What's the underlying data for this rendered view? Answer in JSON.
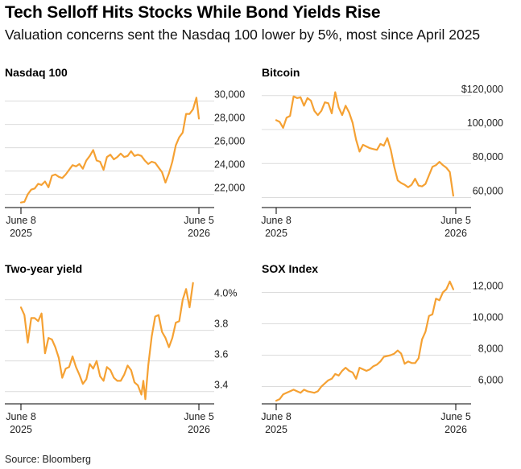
{
  "title": "Tech Selloff Hits Stocks While Bond Yields Rise",
  "subtitle": "Valuation concerns sent the Nasdaq 100 lower by 5%, most since April 2025",
  "source": "Source: Bloomberg",
  "colors": {
    "line": "#f5a133",
    "grid": "#dcdcdc",
    "text": "#000000"
  },
  "chart_data": [
    {
      "type": "line",
      "title": "Nasdaq 100",
      "x_tick_labels": [
        [
          "June 8",
          "2025"
        ],
        [
          "June 5",
          "2026"
        ]
      ],
      "x_range": [
        "2025-06-08",
        "2026-06-05"
      ],
      "y_ticks": [
        22000,
        24000,
        26000,
        28000,
        30000
      ],
      "y_tick_labels": [
        "22,000",
        "24,000",
        "26,000",
        "28,000",
        "30,000"
      ],
      "ylim": [
        21000,
        31500
      ],
      "grid": true,
      "series": [
        {
          "values": [
            [
              "2025-06-08",
              21300
            ],
            [
              "2025-06-15",
              21350
            ],
            [
              "2025-06-22",
              22000
            ],
            [
              "2025-06-29",
              22400
            ],
            [
              "2025-07-06",
              22500
            ],
            [
              "2025-07-13",
              22900
            ],
            [
              "2025-07-20",
              22800
            ],
            [
              "2025-07-27",
              23100
            ],
            [
              "2025-08-03",
              22600
            ],
            [
              "2025-08-10",
              23600
            ],
            [
              "2025-08-17",
              23700
            ],
            [
              "2025-08-24",
              23500
            ],
            [
              "2025-08-31",
              23400
            ],
            [
              "2025-09-07",
              23700
            ],
            [
              "2025-09-14",
              24100
            ],
            [
              "2025-09-21",
              24500
            ],
            [
              "2025-09-28",
              24400
            ],
            [
              "2025-10-05",
              24600
            ],
            [
              "2025-10-12",
              24200
            ],
            [
              "2025-10-19",
              24900
            ],
            [
              "2025-10-26",
              25300
            ],
            [
              "2025-11-02",
              25800
            ],
            [
              "2025-11-09",
              24900
            ],
            [
              "2025-11-16",
              24800
            ],
            [
              "2025-11-23",
              24100
            ],
            [
              "2025-11-30",
              25200
            ],
            [
              "2025-12-07",
              25400
            ],
            [
              "2025-12-14",
              25000
            ],
            [
              "2025-12-21",
              25200
            ],
            [
              "2025-12-28",
              25500
            ],
            [
              "2026-01-04",
              25200
            ],
            [
              "2026-01-11",
              25300
            ],
            [
              "2026-01-18",
              25700
            ],
            [
              "2026-01-25",
              25300
            ],
            [
              "2026-02-01",
              25400
            ],
            [
              "2026-02-08",
              25300
            ],
            [
              "2026-02-15",
              24900
            ],
            [
              "2026-02-22",
              24600
            ],
            [
              "2026-03-01",
              24800
            ],
            [
              "2026-03-08",
              24700
            ],
            [
              "2026-03-15",
              24300
            ],
            [
              "2026-03-22",
              23900
            ],
            [
              "2026-03-29",
              23000
            ],
            [
              "2026-04-05",
              23800
            ],
            [
              "2026-04-12",
              24800
            ],
            [
              "2026-04-19",
              26200
            ],
            [
              "2026-04-26",
              26900
            ],
            [
              "2026-05-03",
              27300
            ],
            [
              "2026-05-10",
              28900
            ],
            [
              "2026-05-17",
              28900
            ],
            [
              "2026-05-24",
              29300
            ],
            [
              "2026-05-31",
              30300
            ],
            [
              "2026-06-05",
              28500
            ]
          ]
        }
      ]
    },
    {
      "type": "line",
      "title": "Bitcoin",
      "x_tick_labels": [
        [
          "June 8",
          "2025"
        ],
        [
          "June 5",
          "2026"
        ]
      ],
      "x_range": [
        "2025-06-08",
        "2026-06-05"
      ],
      "y_ticks": [
        60000,
        80000,
        100000,
        120000
      ],
      "y_tick_labels": [
        "60,000",
        "80,000",
        "100,000",
        "$120,000"
      ],
      "ylim": [
        55000,
        127000
      ],
      "grid": true,
      "series": [
        {
          "values": [
            [
              "2025-06-08",
              105500
            ],
            [
              "2025-06-15",
              104500
            ],
            [
              "2025-06-22",
              101000
            ],
            [
              "2025-06-29",
              107000
            ],
            [
              "2025-07-06",
              108000
            ],
            [
              "2025-07-13",
              119500
            ],
            [
              "2025-07-20",
              118500
            ],
            [
              "2025-07-27",
              119000
            ],
            [
              "2025-08-03",
              114000
            ],
            [
              "2025-08-10",
              118500
            ],
            [
              "2025-08-17",
              117000
            ],
            [
              "2025-08-24",
              111000
            ],
            [
              "2025-08-31",
              108500
            ],
            [
              "2025-09-07",
              111000
            ],
            [
              "2025-09-14",
              116000
            ],
            [
              "2025-09-21",
              115500
            ],
            [
              "2025-09-28",
              109500
            ],
            [
              "2025-10-05",
              122000
            ],
            [
              "2025-10-12",
              113000
            ],
            [
              "2025-10-19",
              108500
            ],
            [
              "2025-10-26",
              114000
            ],
            [
              "2025-11-02",
              110000
            ],
            [
              "2025-11-09",
              104000
            ],
            [
              "2025-11-16",
              94000
            ],
            [
              "2025-11-23",
              87000
            ],
            [
              "2025-11-30",
              91000
            ],
            [
              "2025-12-07",
              90000
            ],
            [
              "2025-12-14",
              89000
            ],
            [
              "2025-12-21",
              88500
            ],
            [
              "2025-12-28",
              88000
            ],
            [
              "2026-01-04",
              91500
            ],
            [
              "2026-01-11",
              90500
            ],
            [
              "2026-01-18",
              95000
            ],
            [
              "2026-01-25",
              88000
            ],
            [
              "2026-02-01",
              78000
            ],
            [
              "2026-02-08",
              70000
            ],
            [
              "2026-02-15",
              68500
            ],
            [
              "2026-02-22",
              67500
            ],
            [
              "2026-03-01",
              66000
            ],
            [
              "2026-03-08",
              67500
            ],
            [
              "2026-03-15",
              71000
            ],
            [
              "2026-03-22",
              67000
            ],
            [
              "2026-03-29",
              66500
            ],
            [
              "2026-04-05",
              68000
            ],
            [
              "2026-04-12",
              73000
            ],
            [
              "2026-04-19",
              78000
            ],
            [
              "2026-04-26",
              79000
            ],
            [
              "2026-05-03",
              81000
            ],
            [
              "2026-05-10",
              79000
            ],
            [
              "2026-05-17",
              77500
            ],
            [
              "2026-05-24",
              75000
            ],
            [
              "2026-05-31",
              61000
            ]
          ]
        }
      ]
    },
    {
      "type": "line",
      "title": "Two-year yield",
      "x_tick_labels": [
        [
          "June 8",
          "2025"
        ],
        [
          "June 5",
          "2026"
        ]
      ],
      "x_range": [
        "2025-06-08",
        "2026-06-05"
      ],
      "y_ticks": [
        3.4,
        3.6,
        3.8,
        4.0
      ],
      "y_tick_labels": [
        "3.4",
        "3.6",
        "3.8",
        "4.0%"
      ],
      "ylim": [
        3.33,
        4.14
      ],
      "grid": true,
      "series": [
        {
          "values": [
            [
              "2025-06-08",
              3.95
            ],
            [
              "2025-06-15",
              3.9
            ],
            [
              "2025-06-22",
              3.72
            ],
            [
              "2025-06-29",
              3.88
            ],
            [
              "2025-07-06",
              3.88
            ],
            [
              "2025-07-13",
              3.86
            ],
            [
              "2025-07-20",
              3.91
            ],
            [
              "2025-07-27",
              3.65
            ],
            [
              "2025-08-03",
              3.75
            ],
            [
              "2025-08-10",
              3.74
            ],
            [
              "2025-08-17",
              3.69
            ],
            [
              "2025-08-24",
              3.62
            ],
            [
              "2025-08-31",
              3.49
            ],
            [
              "2025-09-07",
              3.55
            ],
            [
              "2025-09-14",
              3.56
            ],
            [
              "2025-09-21",
              3.63
            ],
            [
              "2025-09-28",
              3.56
            ],
            [
              "2025-10-05",
              3.51
            ],
            [
              "2025-10-12",
              3.45
            ],
            [
              "2025-10-19",
              3.48
            ],
            [
              "2025-10-26",
              3.58
            ],
            [
              "2025-11-02",
              3.55
            ],
            [
              "2025-11-09",
              3.6
            ],
            [
              "2025-11-16",
              3.5
            ],
            [
              "2025-11-23",
              3.47
            ],
            [
              "2025-11-30",
              3.56
            ],
            [
              "2025-12-07",
              3.54
            ],
            [
              "2025-12-14",
              3.49
            ],
            [
              "2025-12-21",
              3.47
            ],
            [
              "2025-12-28",
              3.47
            ],
            [
              "2026-01-04",
              3.51
            ],
            [
              "2026-01-11",
              3.57
            ],
            [
              "2026-01-18",
              3.54
            ],
            [
              "2026-01-25",
              3.46
            ],
            [
              "2026-02-01",
              3.44
            ],
            [
              "2026-02-08",
              3.38
            ],
            [
              "2026-02-12",
              3.47
            ],
            [
              "2026-02-16",
              3.35
            ],
            [
              "2026-02-22",
              3.57
            ],
            [
              "2026-03-01",
              3.76
            ],
            [
              "2026-03-08",
              3.89
            ],
            [
              "2026-03-15",
              3.9
            ],
            [
              "2026-03-22",
              3.79
            ],
            [
              "2026-03-29",
              3.75
            ],
            [
              "2026-04-05",
              3.69
            ],
            [
              "2026-04-12",
              3.75
            ],
            [
              "2026-04-19",
              3.85
            ],
            [
              "2026-04-26",
              3.86
            ],
            [
              "2026-05-03",
              4.0
            ],
            [
              "2026-05-10",
              4.07
            ],
            [
              "2026-05-17",
              3.95
            ],
            [
              "2026-05-24",
              4.11
            ]
          ]
        }
      ]
    },
    {
      "type": "line",
      "title": "SOX Index",
      "x_tick_labels": [
        [
          "June 8",
          "2025"
        ],
        [
          "June 5",
          "2026"
        ]
      ],
      "x_range": [
        "2025-06-08",
        "2026-06-05"
      ],
      "y_ticks": [
        6000,
        8000,
        10000,
        12000
      ],
      "y_tick_labels": [
        "6,000",
        "8,000",
        "10,000",
        "12,000"
      ],
      "ylim": [
        5000,
        12900
      ],
      "grid": true,
      "series": [
        {
          "values": [
            [
              "2025-06-08",
              5100
            ],
            [
              "2025-06-15",
              5200
            ],
            [
              "2025-06-22",
              5500
            ],
            [
              "2025-06-29",
              5600
            ],
            [
              "2025-07-06",
              5700
            ],
            [
              "2025-07-13",
              5800
            ],
            [
              "2025-07-20",
              5700
            ],
            [
              "2025-07-27",
              5600
            ],
            [
              "2025-08-03",
              5800
            ],
            [
              "2025-08-10",
              5700
            ],
            [
              "2025-08-17",
              5650
            ],
            [
              "2025-08-24",
              5600
            ],
            [
              "2025-08-31",
              5700
            ],
            [
              "2025-09-07",
              6000
            ],
            [
              "2025-09-14",
              6200
            ],
            [
              "2025-09-21",
              6400
            ],
            [
              "2025-09-28",
              6500
            ],
            [
              "2025-10-05",
              6800
            ],
            [
              "2025-10-12",
              6700
            ],
            [
              "2025-10-19",
              7000
            ],
            [
              "2025-10-26",
              7200
            ],
            [
              "2025-11-02",
              7000
            ],
            [
              "2025-11-09",
              6900
            ],
            [
              "2025-11-16",
              6500
            ],
            [
              "2025-11-23",
              7200
            ],
            [
              "2025-12-07",
              7000
            ],
            [
              "2025-12-14",
              7100
            ],
            [
              "2025-12-21",
              7300
            ],
            [
              "2025-12-28",
              7400
            ],
            [
              "2026-01-04",
              7600
            ],
            [
              "2026-01-11",
              7900
            ],
            [
              "2026-01-18",
              7950
            ],
            [
              "2026-01-25",
              8000
            ],
            [
              "2026-02-01",
              8100
            ],
            [
              "2026-02-08",
              8300
            ],
            [
              "2026-02-15",
              8100
            ],
            [
              "2026-02-22",
              7450
            ],
            [
              "2026-03-01",
              7600
            ],
            [
              "2026-03-08",
              7500
            ],
            [
              "2026-03-15",
              7500
            ],
            [
              "2026-03-22",
              7800
            ],
            [
              "2026-03-29",
              9000
            ],
            [
              "2026-04-05",
              9500
            ],
            [
              "2026-04-12",
              10500
            ],
            [
              "2026-04-19",
              10600
            ],
            [
              "2026-04-26",
              11600
            ],
            [
              "2026-05-03",
              11500
            ],
            [
              "2026-05-10",
              12000
            ],
            [
              "2026-05-17",
              12200
            ],
            [
              "2026-05-24",
              12700
            ],
            [
              "2026-05-31",
              12200
            ]
          ]
        }
      ]
    }
  ]
}
